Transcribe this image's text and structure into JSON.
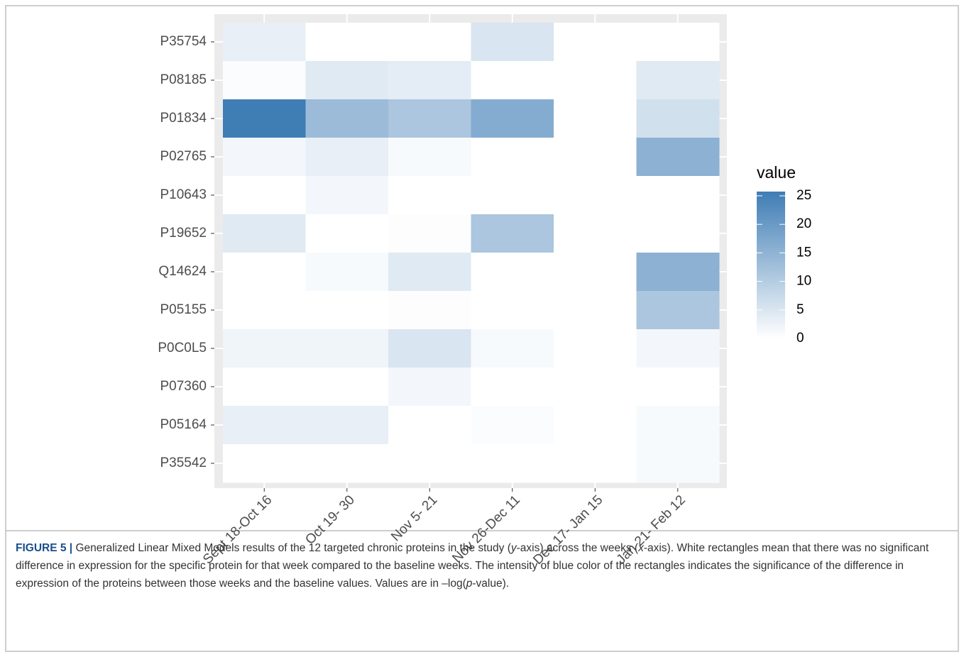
{
  "chart_data": {
    "type": "heatmap",
    "x_categories": [
      "Sept 18-Oct 16",
      "Oct 19- 30",
      "Nov 5- 21",
      "Nov 26-Dec 11",
      "Dec 17- Jan 15",
      "Jan 21- Feb 12"
    ],
    "y_categories": [
      "P35754",
      "P08185",
      "P01834",
      "P02765",
      "P10643",
      "P19652",
      "Q14624",
      "P05155",
      "P0C0L5",
      "P07360",
      "P05164",
      "P35542"
    ],
    "values": [
      [
        3,
        0,
        0,
        5,
        0,
        0
      ],
      [
        0.5,
        4,
        3.5,
        0,
        0,
        4
      ],
      [
        25,
        13,
        11,
        16,
        0,
        6
      ],
      [
        1.5,
        3,
        1,
        0,
        0,
        15
      ],
      [
        0,
        1.5,
        0,
        0,
        0,
        0
      ],
      [
        4,
        0,
        0.3,
        11,
        0,
        0
      ],
      [
        0,
        1,
        4,
        0,
        0,
        15
      ],
      [
        0,
        0,
        0.3,
        0,
        0,
        11
      ],
      [
        2,
        2,
        5,
        1,
        0,
        1.5
      ],
      [
        0,
        0,
        1.5,
        0,
        0,
        0
      ],
      [
        3,
        3,
        0,
        0.5,
        0,
        1
      ],
      [
        0,
        0,
        0,
        0,
        0,
        1
      ]
    ],
    "colorbar": {
      "title": "value",
      "lim": [
        0,
        25
      ],
      "ticks": [
        0,
        5,
        10,
        15,
        20,
        25
      ],
      "colors": [
        "#ffffff",
        "#3f7db5"
      ]
    }
  },
  "caption": {
    "label": "FIGURE 5 |",
    "runs": [
      " Generalized Linear Mixed Models results of the 12 targeted chronic proteins in the study (",
      "y",
      "-axis) across the weeks (",
      "x",
      "-axis). White rectangles mean that there was no significant difference in expression for the specific protein for that week compared to the baseline weeks. The intensity of blue color of the rectangles indicates the significance of the difference in expression of the proteins between those weeks and the baseline values. Values are in –log(",
      "p",
      "-value)."
    ]
  }
}
